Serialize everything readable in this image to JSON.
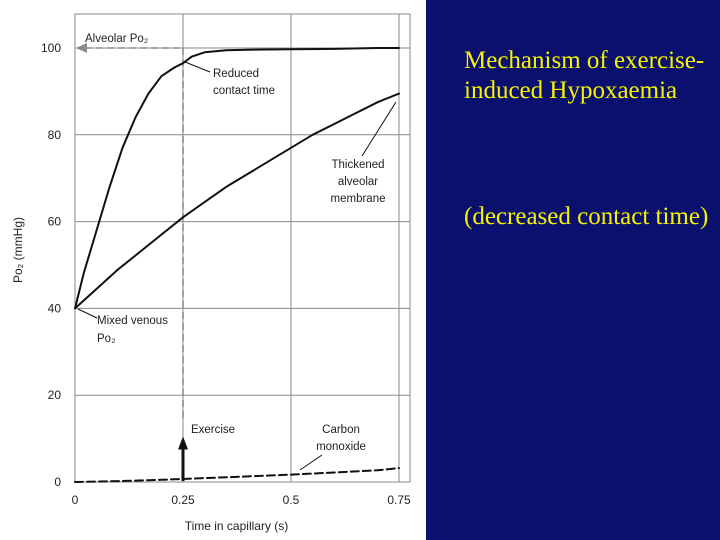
{
  "chart_data": {
    "type": "line",
    "xlabel": "Time in capillary (s)",
    "ylabel": "Po₂ (mmHg)",
    "xlim": [
      0,
      0.75
    ],
    "ylim": [
      0,
      108
    ],
    "x_ticks": [
      "0",
      "0.25",
      "0.5",
      "0.75"
    ],
    "y_ticks": [
      "0",
      "20",
      "40",
      "60",
      "80",
      "100"
    ],
    "grid": true,
    "series": [
      {
        "name": "",
        "color": "#111111",
        "style": "solid",
        "x": [
          0,
          0.02,
          0.05,
          0.08,
          0.11,
          0.14,
          0.17,
          0.2,
          0.23,
          0.25,
          0.27,
          0.3,
          0.35,
          0.4,
          0.5,
          0.6,
          0.7,
          0.75
        ],
        "y": [
          40,
          48,
          58,
          68,
          77,
          84,
          89.5,
          93.5,
          95.5,
          96.5,
          98,
          99,
          99.5,
          99.6,
          99.7,
          99.8,
          100,
          100
        ]
      },
      {
        "name": "",
        "color": "#111111",
        "style": "solid",
        "x": [
          0,
          0.05,
          0.1,
          0.15,
          0.2,
          0.25,
          0.3,
          0.35,
          0.4,
          0.45,
          0.5,
          0.55,
          0.6,
          0.65,
          0.7,
          0.75
        ],
        "y": [
          40,
          44.5,
          49,
          53,
          57,
          61,
          64.5,
          68,
          71,
          74,
          77,
          80,
          82.5,
          85,
          87.5,
          89.5
        ]
      },
      {
        "name": "",
        "color": "#111111",
        "style": "dashed",
        "x": [
          0,
          0.1,
          0.2,
          0.3,
          0.4,
          0.5,
          0.6,
          0.7,
          0.75
        ],
        "y": [
          0,
          0.2,
          0.5,
          0.9,
          1.3,
          1.7,
          2.2,
          2.7,
          3.2
        ]
      }
    ],
    "reference_lines": {
      "alveolar_po2_value": 100,
      "exercise_time": 0.25
    },
    "annotations": {
      "alveolar": "Alveolar Po₂",
      "reduced_1": "Reduced",
      "reduced_2": "contact time",
      "thickened_1": "Thickened",
      "thickened_2": "alveolar",
      "thickened_3": "membrane",
      "venous_1": "Mixed venous",
      "venous_2": "Po₂",
      "exercise": "Exercise",
      "co_1": "Carbon",
      "co_2": "monoxide"
    }
  },
  "slide": {
    "title": "Mechanism of exercise-induced Hypoxaemia",
    "subtitle": "(decreased contact time)"
  },
  "colors": {
    "panel_bg": "#0b0f6e",
    "panel_text": "#f4f400",
    "grid": "#8a8a8a",
    "reference": "#8a8a8a"
  }
}
